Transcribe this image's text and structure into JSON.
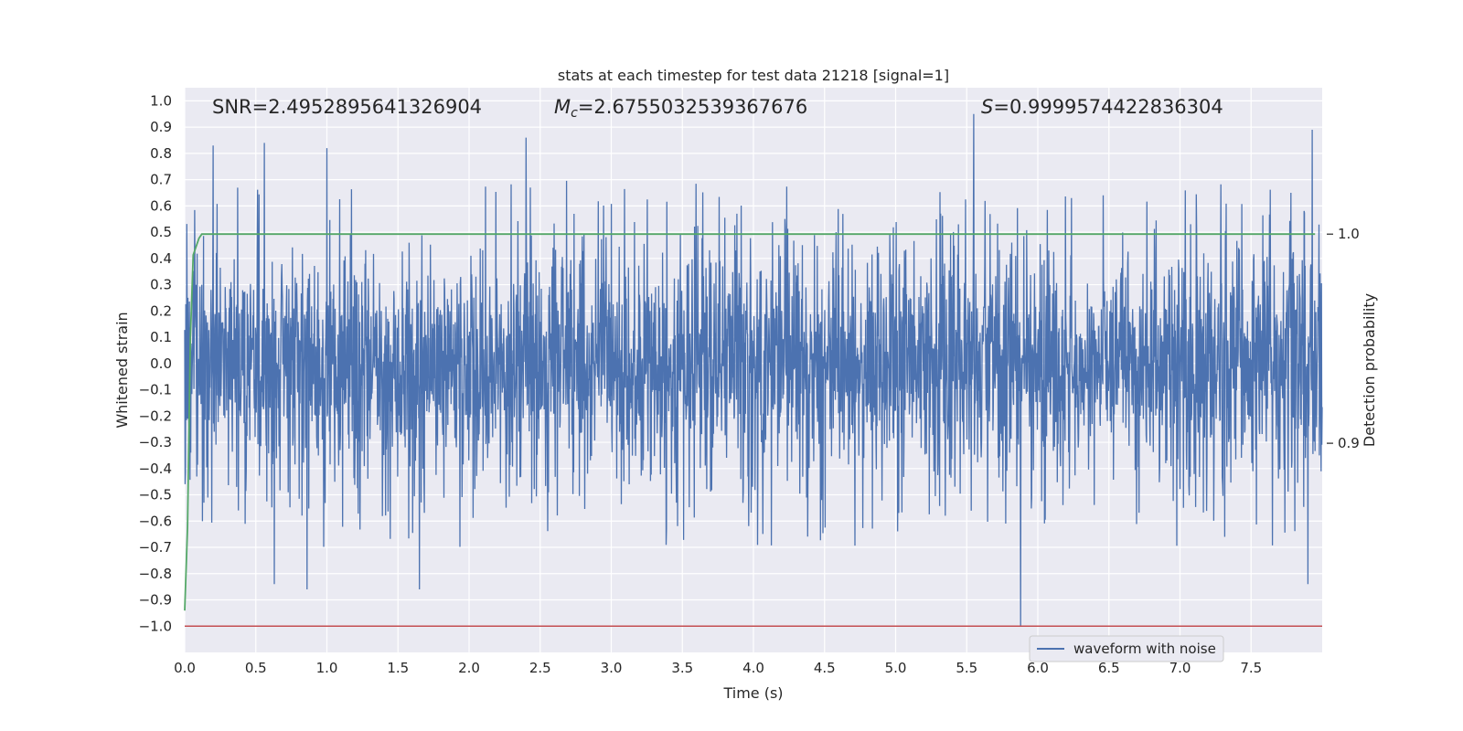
{
  "chart_data": {
    "type": "line",
    "title": "stats at each timestep for test data 21218 [signal=1]",
    "xlabel": "Time (s)",
    "ylabel": "Whitened strain",
    "y2label": "Detection probability",
    "xlim": [
      0.0,
      8.0
    ],
    "ylim": [
      -1.1,
      1.05
    ],
    "y2lim": [
      0.8,
      1.07
    ],
    "xticks": [
      "0.0",
      "0.5",
      "1.0",
      "1.5",
      "2.0",
      "2.5",
      "3.0",
      "3.5",
      "4.0",
      "4.5",
      "5.0",
      "5.5",
      "6.0",
      "6.5",
      "7.0",
      "7.5"
    ],
    "yticks": [
      "1.0",
      "0.9",
      "0.8",
      "0.7",
      "0.6",
      "0.5",
      "0.4",
      "0.3",
      "0.2",
      "0.1",
      "0.0",
      "−0.1",
      "−0.2",
      "−0.3",
      "−0.4",
      "−0.5",
      "−0.6",
      "−0.7",
      "−0.8",
      "−0.9",
      "−1.0"
    ],
    "y2ticks": [
      "1.0",
      "0.9"
    ],
    "grid": true,
    "legend_position": "lower-right",
    "annotations": {
      "snr": "SNR=2.4952895641326904",
      "mc_symbol": "M",
      "mc_sub": "c",
      "mc_value": "=2.6755032539367676",
      "s_symbol": "S",
      "s_value": "=0.9999574422836304"
    },
    "series": [
      {
        "name": "waveform with noise",
        "color": "#4c72b0",
        "axis": "left",
        "description": "dense noisy whitened-strain trace, ~8192 samples over 0-8 s, mostly within ±0.4 with spikes",
        "x_start": 0.0,
        "x_end": 8.0,
        "spike_peaks": [
          {
            "x": 0.2,
            "y": 0.83
          },
          {
            "x": 0.56,
            "y": 0.84
          },
          {
            "x": 1.0,
            "y": 0.82
          },
          {
            "x": 2.4,
            "y": 0.86
          },
          {
            "x": 5.55,
            "y": 0.95
          },
          {
            "x": 7.93,
            "y": 0.89
          },
          {
            "x": 0.63,
            "y": -0.84
          },
          {
            "x": 0.86,
            "y": -0.86
          },
          {
            "x": 1.65,
            "y": -0.86
          },
          {
            "x": 5.88,
            "y": -1.0
          },
          {
            "x": 7.9,
            "y": -0.84
          }
        ]
      },
      {
        "name": "",
        "color": "#55a868",
        "axis": "right",
        "description": "detection probability over time",
        "x": [
          0.0,
          0.02,
          0.04,
          0.06,
          0.1,
          0.12,
          0.2,
          1.0,
          4.0,
          7.95
        ],
        "y": [
          0.82,
          0.86,
          0.95,
          0.99,
          0.998,
          1.0,
          1.0,
          1.0,
          1.0,
          1.0
        ]
      },
      {
        "name": "",
        "color": "#c44e52",
        "axis": "left",
        "description": "horizontal reference line",
        "x": [
          0.0,
          8.0
        ],
        "y": [
          -1.0,
          -1.0
        ]
      }
    ]
  }
}
